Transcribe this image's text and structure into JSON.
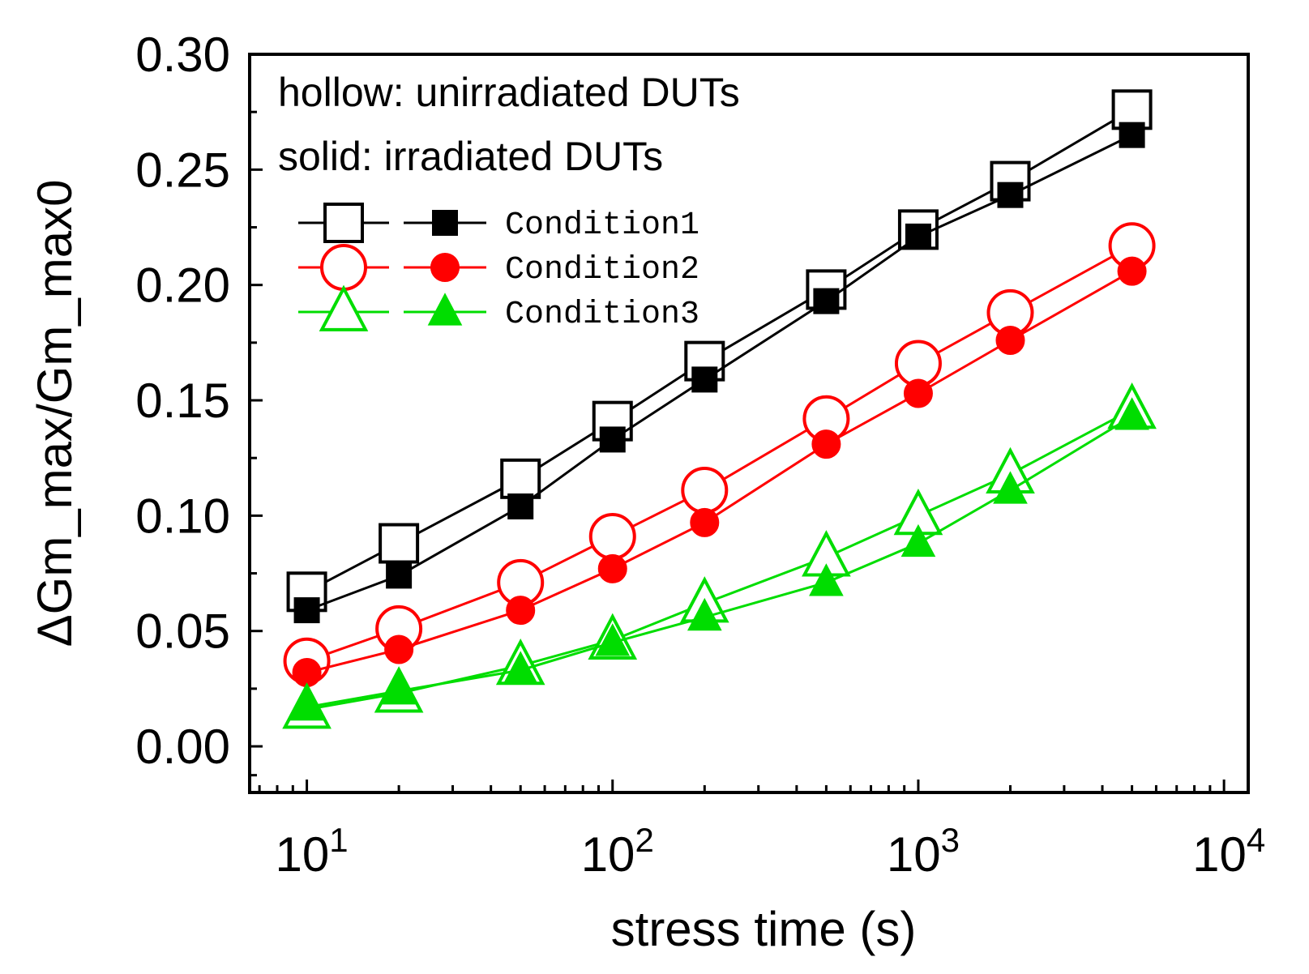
{
  "chart_data": {
    "type": "line",
    "xscale": "log",
    "xlabel": "stress time (s)",
    "ylabel": "ΔGm_max/Gm_max0",
    "xlim": [
      6.5,
      12000
    ],
    "ylim": [
      -0.02,
      0.3
    ],
    "x_ticks": [
      10,
      100,
      1000,
      10000
    ],
    "x_tick_exponents": [
      "1",
      "2",
      "3",
      "4"
    ],
    "x_tick_base": "10",
    "y_ticks": [
      "0.00",
      "0.05",
      "0.10",
      "0.15",
      "0.20",
      "0.25",
      "0.30"
    ],
    "notes": [
      "hollow: unirradiated DUTs",
      "solid: irradiated DUTs"
    ],
    "legend_position": "upper-left",
    "x": [
      10,
      20,
      50,
      100,
      200,
      500,
      1000,
      2000,
      5000
    ],
    "series": [
      {
        "name": "Condition1",
        "group": "unirradiated",
        "marker": "square",
        "filled": false,
        "color": "#000000",
        "values": [
          0.067,
          0.088,
          0.116,
          0.141,
          0.167,
          0.198,
          0.224,
          0.245,
          0.276
        ]
      },
      {
        "name": "Condition1",
        "group": "irradiated",
        "marker": "square",
        "filled": true,
        "color": "#000000",
        "values": [
          0.059,
          0.074,
          0.104,
          0.133,
          0.159,
          0.193,
          0.221,
          0.239,
          0.265
        ]
      },
      {
        "name": "Condition2",
        "group": "unirradiated",
        "marker": "circle",
        "filled": false,
        "color": "#ff0000",
        "values": [
          0.037,
          0.051,
          0.071,
          0.091,
          0.111,
          0.142,
          0.166,
          0.188,
          0.217
        ]
      },
      {
        "name": "Condition2",
        "group": "irradiated",
        "marker": "circle",
        "filled": true,
        "color": "#ff0000",
        "values": [
          0.032,
          0.042,
          0.059,
          0.077,
          0.097,
          0.131,
          0.153,
          0.176,
          0.206
        ]
      },
      {
        "name": "Condition3",
        "group": "unirradiated",
        "marker": "triangle",
        "filled": false,
        "color": "#00dd00",
        "values": [
          0.016,
          0.023,
          0.035,
          0.046,
          0.062,
          0.082,
          0.1,
          0.118,
          0.146
        ]
      },
      {
        "name": "Condition3",
        "group": "irradiated",
        "marker": "triangle",
        "filled": true,
        "color": "#00dd00",
        "values": [
          0.017,
          0.024,
          0.033,
          0.045,
          0.056,
          0.071,
          0.088,
          0.111,
          0.143
        ]
      }
    ]
  }
}
